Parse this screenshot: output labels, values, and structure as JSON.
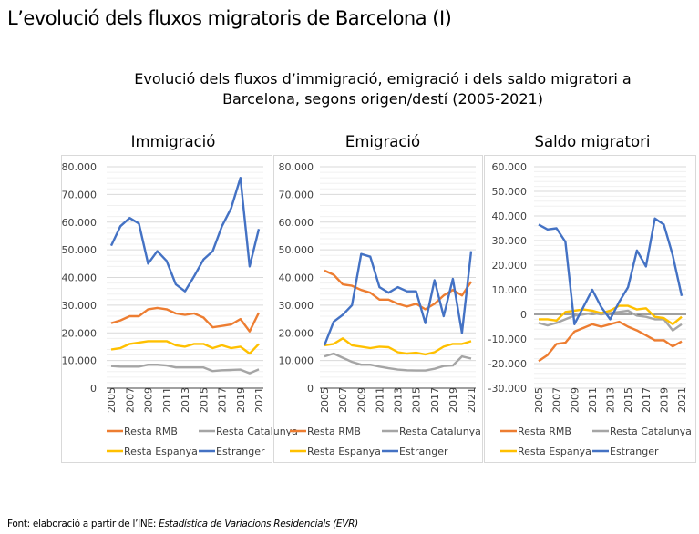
{
  "title": "L’evolució dels fluxos migratoris de Barcelona (I)",
  "subtitle_line1": "Evolució dels fluxos d’immigració, emigració i dels saldo migratori a",
  "subtitle_line2": "Barcelona, segons origen/destí (2005-2021)",
  "footer": {
    "prefix": "Font: elaboració a partir de l’INE: ",
    "source": "Estadística de Variacions Residencials (EVR)"
  },
  "colors": {
    "Resta RMB": "#ED7D31",
    "Resta Catalunya": "#A5A5A5",
    "Resta Espanya": "#FFC000",
    "Estranger": "#4472C4"
  },
  "chart_data": [
    {
      "type": "line",
      "title": "Immigració",
      "x": [
        2005,
        2006,
        2007,
        2008,
        2009,
        2010,
        2011,
        2012,
        2013,
        2014,
        2015,
        2016,
        2017,
        2018,
        2019,
        2020,
        2021
      ],
      "x_tick_labels": [
        "2005",
        "2007",
        "2009",
        "2011",
        "2013",
        "2015",
        "2017",
        "2019",
        "2021"
      ],
      "ylim": [
        0,
        80000
      ],
      "y_tick_labels": [
        "0",
        "10.000",
        "20.000",
        "30.000",
        "40.000",
        "50.000",
        "60.000",
        "70.000",
        "80.000"
      ],
      "grid": true,
      "legend": "bottom",
      "series": [
        {
          "name": "Resta RMB",
          "values": [
            23500,
            24500,
            26000,
            26000,
            28500,
            29000,
            28500,
            27000,
            26500,
            27000,
            25500,
            22000,
            22500,
            23000,
            25000,
            20500,
            27300
          ]
        },
        {
          "name": "Resta Catalunya",
          "values": [
            8000,
            7800,
            7800,
            7800,
            8500,
            8500,
            8200,
            7500,
            7500,
            7500,
            7500,
            6200,
            6500,
            6600,
            6700,
            5400,
            6800
          ]
        },
        {
          "name": "Resta Espanya",
          "values": [
            14000,
            14500,
            16000,
            16500,
            17000,
            17000,
            17000,
            15500,
            15000,
            16000,
            16000,
            14500,
            15500,
            14500,
            15000,
            12500,
            16000
          ]
        },
        {
          "name": "Estranger",
          "values": [
            51500,
            58500,
            61500,
            59500,
            45000,
            49500,
            46000,
            37500,
            35000,
            40500,
            46500,
            49500,
            58500,
            65000,
            76000,
            44000,
            57500
          ]
        }
      ]
    },
    {
      "type": "line",
      "title": "Emigració",
      "x": [
        2005,
        2006,
        2007,
        2008,
        2009,
        2010,
        2011,
        2012,
        2013,
        2014,
        2015,
        2016,
        2017,
        2018,
        2019,
        2020,
        2021
      ],
      "x_tick_labels": [
        "2005",
        "2007",
        "2009",
        "2011",
        "2013",
        "2015",
        "2017",
        "2019",
        "2021"
      ],
      "ylim": [
        0,
        80000
      ],
      "y_tick_labels": [
        "0",
        "10.000",
        "20.000",
        "30.000",
        "40.000",
        "50.000",
        "60.000",
        "70.000",
        "80.000"
      ],
      "grid": true,
      "legend": "bottom",
      "series": [
        {
          "name": "Resta RMB",
          "values": [
            42500,
            41000,
            37500,
            37000,
            35500,
            34500,
            32000,
            32000,
            30500,
            29500,
            30500,
            28500,
            30500,
            33500,
            35500,
            33500,
            38500
          ]
        },
        {
          "name": "Resta Catalunya",
          "values": [
            11500,
            12500,
            11000,
            9500,
            8500,
            8500,
            7800,
            7200,
            6700,
            6500,
            6400,
            6400,
            7000,
            8000,
            8200,
            11500,
            10700
          ]
        },
        {
          "name": "Resta Espanya",
          "values": [
            15500,
            16000,
            18000,
            15500,
            15000,
            14500,
            15000,
            14800,
            13000,
            12500,
            12800,
            12200,
            13000,
            15000,
            16000,
            16000,
            17000
          ]
        },
        {
          "name": "Estranger",
          "values": [
            15500,
            24000,
            26500,
            30000,
            48500,
            47500,
            36500,
            34500,
            36500,
            35000,
            35000,
            23500,
            39000,
            26000,
            39500,
            20000,
            49500
          ]
        }
      ]
    },
    {
      "type": "line",
      "title": "Saldo migratori",
      "x": [
        2005,
        2006,
        2007,
        2008,
        2009,
        2010,
        2011,
        2012,
        2013,
        2014,
        2015,
        2016,
        2017,
        2018,
        2019,
        2020,
        2021
      ],
      "x_tick_labels": [
        "2005",
        "2007",
        "2009",
        "2011",
        "2013",
        "2015",
        "2017",
        "2019",
        "2021"
      ],
      "ylim": [
        -30000,
        60000
      ],
      "y_tick_labels": [
        "-30.000",
        "-20.000",
        "-10.000",
        "0",
        "10.000",
        "20.000",
        "30.000",
        "40.000",
        "50.000",
        "60.000"
      ],
      "grid": true,
      "legend": "bottom",
      "series": [
        {
          "name": "Resta RMB",
          "values": [
            -19000,
            -16500,
            -12000,
            -11500,
            -7000,
            -5500,
            -4000,
            -5000,
            -4000,
            -3000,
            -5000,
            -6500,
            -8500,
            -10500,
            -10500,
            -13000,
            -11000
          ]
        },
        {
          "name": "Resta Catalunya",
          "values": [
            -3500,
            -4500,
            -3500,
            -2000,
            -500,
            0,
            500,
            0,
            500,
            1000,
            1500,
            -500,
            -1000,
            -2000,
            -2000,
            -6500,
            -4000
          ]
        },
        {
          "name": "Resta Espanya",
          "values": [
            -2000,
            -2000,
            -2500,
            1000,
            1500,
            2000,
            1500,
            500,
            1500,
            3500,
            3500,
            2000,
            2500,
            -1000,
            -1500,
            -4000,
            -1000
          ]
        },
        {
          "name": "Estranger",
          "values": [
            36500,
            34500,
            35000,
            29500,
            -4000,
            3000,
            10000,
            3000,
            -2000,
            5000,
            11000,
            26000,
            19500,
            39000,
            36500,
            24000,
            7500
          ]
        }
      ]
    }
  ]
}
